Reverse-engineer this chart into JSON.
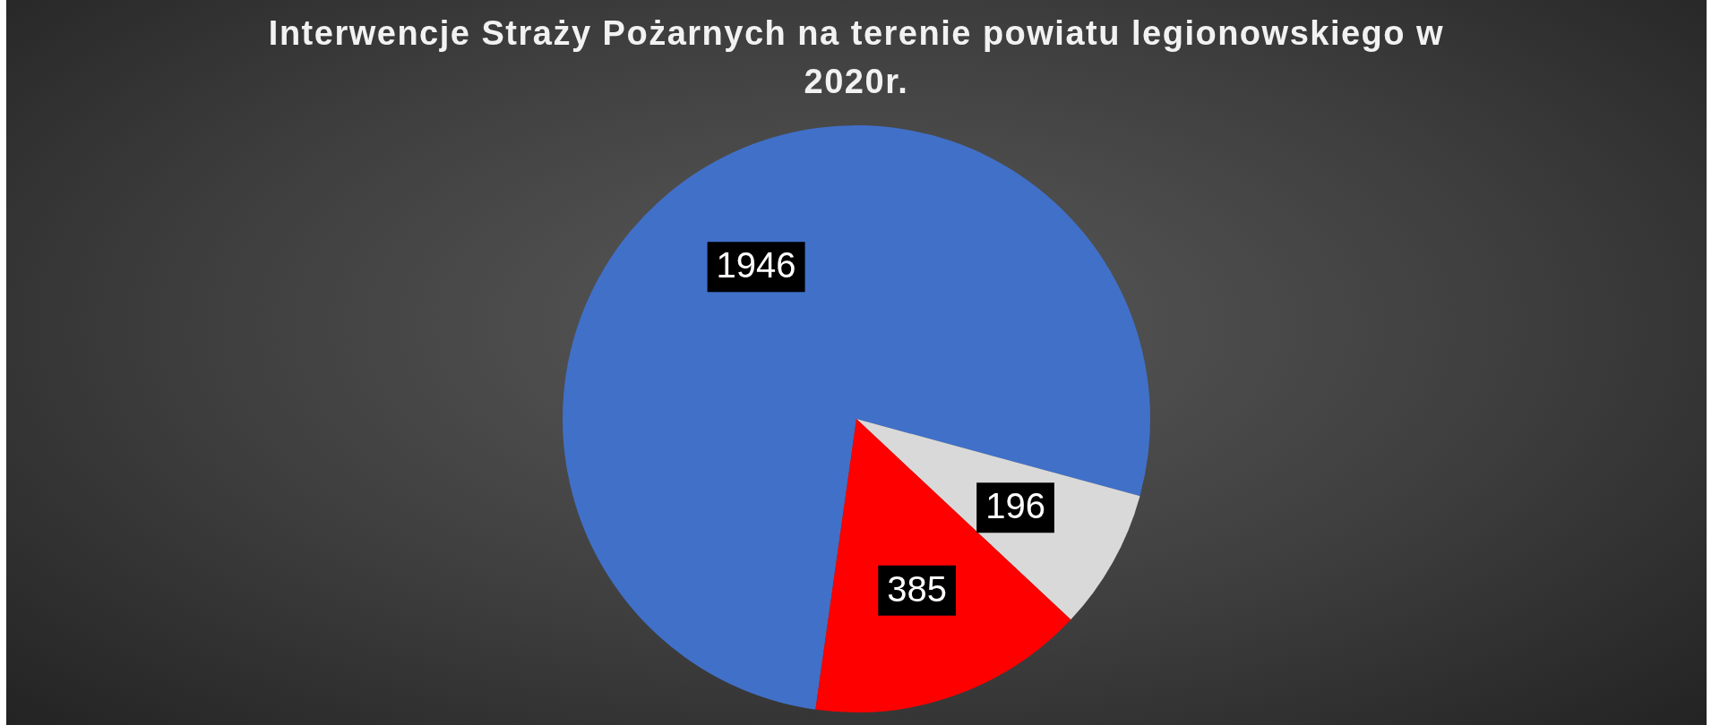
{
  "chart_data": {
    "type": "pie",
    "title": "Interwencje Straży Pożarnych na terenie powiatu legionowskiego w 2020r.",
    "categories": [
      null,
      null,
      null
    ],
    "values": [
      1946,
      196,
      385
    ],
    "colors": [
      "#4170c8",
      "#d9d9d9",
      "#ff0000"
    ],
    "data_labels": true
  }
}
